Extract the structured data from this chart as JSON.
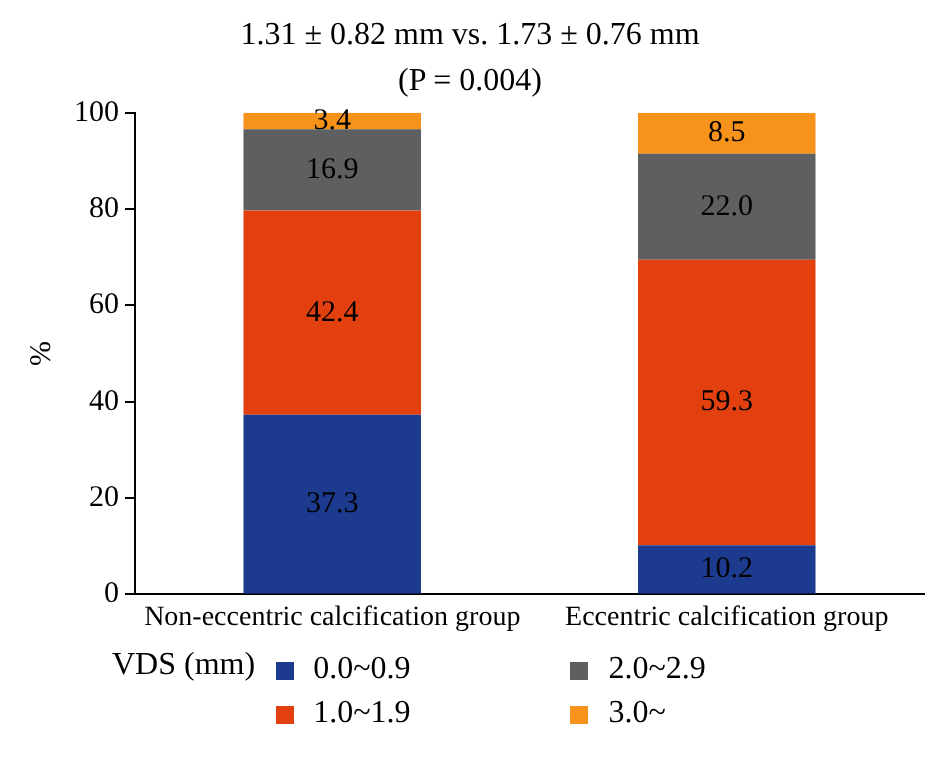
{
  "chart_data": {
    "type": "bar",
    "title": "1.31 ± 0.82 mm vs. 1.73 ± 0.76 mm",
    "subtitle": "(P = 0.004)",
    "ylabel": "%",
    "legend_title": "VDS (mm)",
    "categories": [
      "Non-eccentric calcification group",
      "Eccentric calcification group"
    ],
    "stacked": true,
    "series": [
      {
        "name": "0.0~0.9",
        "color": "#1c3a8e",
        "values": [
          37.3,
          10.2
        ],
        "value_labels": [
          "37.3",
          "10.2"
        ]
      },
      {
        "name": "1.0~1.9",
        "color": "#e2410f",
        "values": [
          42.4,
          59.3
        ],
        "value_labels": [
          "42.4",
          "59.3"
        ]
      },
      {
        "name": "2.0~2.9",
        "color": "#5d5f60",
        "values": [
          16.9,
          22.0
        ],
        "value_labels": [
          "16.9",
          "22.0"
        ]
      },
      {
        "name": "3.0~",
        "color": "#f7921a",
        "values": [
          3.4,
          8.5
        ],
        "value_labels": [
          "3.4",
          "8.5"
        ]
      }
    ],
    "ylim": [
      0,
      100
    ],
    "yticks": [
      0,
      20,
      40,
      60,
      80,
      100
    ],
    "grid": false,
    "legend": "bottom"
  }
}
